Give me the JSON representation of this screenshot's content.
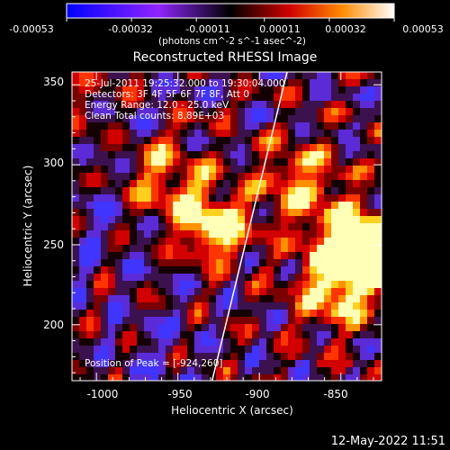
{
  "colorbar": {
    "tick_labels": [
      "-0.00053",
      "-0.00032",
      "-0.00011",
      "0.00011",
      "0.00032",
      "0.00053"
    ],
    "unit_label": "(photons cm^-2 s^-1 asec^-2)"
  },
  "plot": {
    "title": "Reconstructed RHESSI Image",
    "x_axis_label": "Heliocentric X (arcsec)",
    "y_axis_label": "Heliocentric Y (arcsec)",
    "x_ticks": [
      "-1000",
      "-950",
      "-900",
      "-850"
    ],
    "y_ticks": [
      "200",
      "250",
      "300",
      "350"
    ]
  },
  "info": {
    "time": "25-Jul-2011 19:25:32.000 to 19:30:04.000",
    "detectors": "Detectors: 3F 4F 5F 6F 7F 8F, Att 0",
    "energy": "Energy Range: 12.0 - 25.0 keV",
    "clean": "Clean    Total counts: 8.89E+03"
  },
  "peak": {
    "label": "Position of Peak = [-924,260]"
  },
  "timestamp": "12-May-2022 11:51",
  "chart_data": {
    "type": "heatmap",
    "title": "Reconstructed RHESSI Image",
    "xlabel": "Heliocentric X (arcsec)",
    "ylabel": "Heliocentric Y (arcsec)",
    "xlim": [
      -1015,
      -825
    ],
    "ylim": [
      165,
      358
    ],
    "colorbar_range": [
      -0.00053,
      0.00053
    ],
    "limb_line": [
      [
        -929,
        165
      ],
      [
        -883,
        358
      ]
    ],
    "peak_position": [
      -924,
      260
    ],
    "bright_regions": [
      {
        "x": -926,
        "y": 260
      },
      {
        "x": -875,
        "y": 288
      },
      {
        "x": -842,
        "y": 246
      },
      {
        "x": -837,
        "y": 247
      },
      {
        "x": -853,
        "y": 220
      },
      {
        "x": -955,
        "y": 287
      }
    ],
    "colors": {
      "background": "#000000",
      "negative": "#3f42ff",
      "zero": "#000000",
      "positive_low": "#cc0000",
      "positive_high": "#ffffff"
    }
  }
}
